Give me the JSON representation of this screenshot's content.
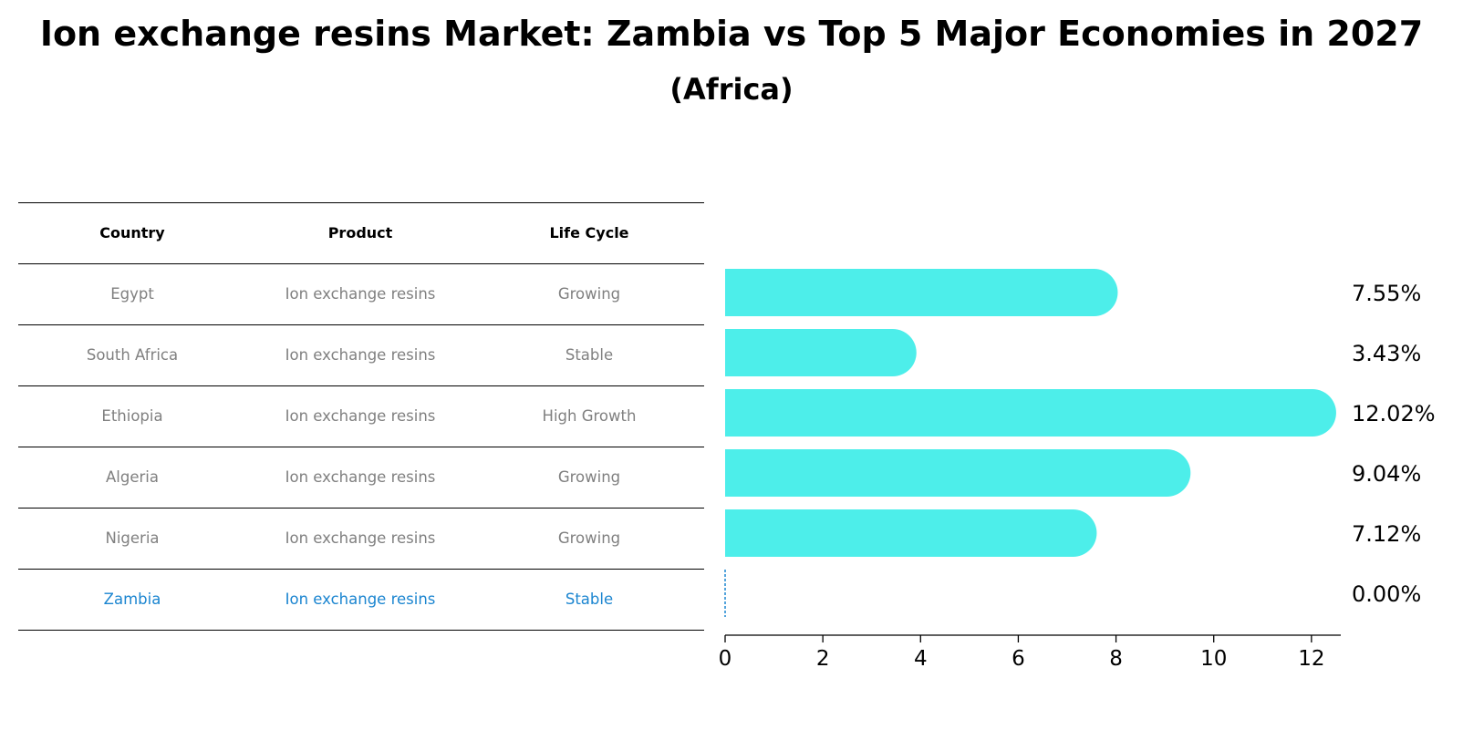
{
  "title": "Ion exchange resins Market: Zambia vs Top 5 Major Economies in 2027",
  "subtitle": "(Africa)",
  "table": {
    "headers": [
      "Country",
      "Product",
      "Life Cycle"
    ],
    "rows": [
      {
        "country": "Egypt",
        "product": "Ion exchange resins",
        "life_cycle": "Growing"
      },
      {
        "country": "South Africa",
        "product": "Ion exchange resins",
        "life_cycle": "Stable"
      },
      {
        "country": "Ethiopia",
        "product": "Ion exchange resins",
        "life_cycle": "High Growth"
      },
      {
        "country": "Algeria",
        "product": "Ion exchange resins",
        "life_cycle": "Growing"
      },
      {
        "country": "Nigeria",
        "product": "Ion exchange resins",
        "life_cycle": "Growing"
      },
      {
        "country": "Zambia",
        "product": "Ion exchange resins",
        "life_cycle": "Stable"
      }
    ]
  },
  "colors": {
    "bar": "#4DEEEA",
    "highlight": "#1B85D0",
    "muted_text": "#808080",
    "text": "#000000"
  },
  "chart_data": {
    "type": "bar",
    "orientation": "horizontal",
    "title": "Ion exchange resins Market: Zambia vs Top 5 Major Economies in 2027",
    "subtitle": "(Africa)",
    "categories": [
      "Egypt",
      "South Africa",
      "Ethiopia",
      "Algeria",
      "Nigeria",
      "Zambia"
    ],
    "values": [
      7.55,
      3.43,
      12.02,
      9.04,
      7.12,
      0.0
    ],
    "value_labels": [
      "7.55%",
      "3.43%",
      "12.02%",
      "9.04%",
      "7.12%",
      "0.00%"
    ],
    "highlight_category": "Zambia",
    "xlim": [
      0,
      12.6
    ],
    "xticks": [
      0,
      2,
      4,
      6,
      8,
      10,
      12
    ],
    "xlabel": "",
    "ylabel": "",
    "grid": false
  }
}
